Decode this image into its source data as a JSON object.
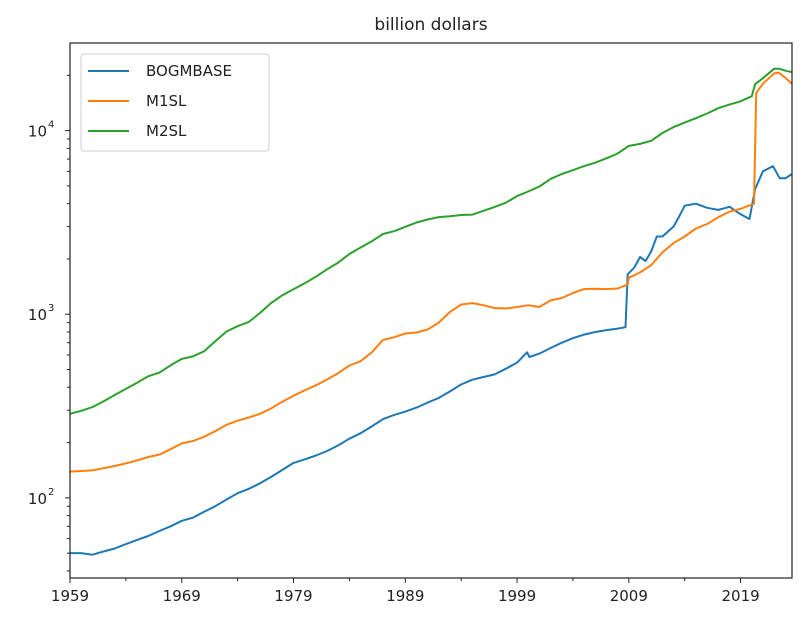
{
  "chart_data": {
    "type": "line",
    "title": "billion dollars",
    "xlabel": "",
    "ylabel": "",
    "yscale": "log",
    "xlim": [
      1959,
      2023.6
    ],
    "ylim": [
      36.6,
      30000
    ],
    "xticks": [
      1959,
      1969,
      1979,
      1989,
      1999,
      2009,
      2019
    ],
    "xtick_labels": [
      "1959",
      "1969",
      "1979",
      "1989",
      "1999",
      "2009",
      "2019"
    ],
    "yticks": [
      100,
      1000,
      10000
    ],
    "ytick_labels": [
      {
        "base": "10",
        "exp": "2"
      },
      {
        "base": "10",
        "exp": "3"
      },
      {
        "base": "10",
        "exp": "4"
      }
    ],
    "grid": false,
    "legend_position": "top-left",
    "series": [
      {
        "name": "BOGMBASE",
        "color": "#1f77b4",
        "x": [
          1959,
          1960,
          1961,
          1962,
          1963,
          1964,
          1965,
          1966,
          1967,
          1968,
          1969,
          1970,
          1971,
          1972,
          1973,
          1974,
          1975,
          1976,
          1977,
          1978,
          1979,
          1980,
          1981,
          1982,
          1983,
          1984,
          1985,
          1986,
          1987,
          1988,
          1989,
          1990,
          1991,
          1992,
          1993,
          1994,
          1995,
          1996,
          1997,
          1998,
          1999,
          1999.9,
          2000.1,
          2001,
          2002,
          2003,
          2004,
          2005,
          2006,
          2007,
          2008,
          2008.7,
          2008.9,
          2009.5,
          2010,
          2010.5,
          2011,
          2011.5,
          2012,
          2013,
          2013.5,
          2014,
          2015,
          2016,
          2017,
          2017.7,
          2018,
          2019,
          2019.8,
          2020.3,
          2021,
          2021.9,
          2022.5,
          2023,
          2023.6
        ],
        "y": [
          50,
          50,
          49,
          51,
          53,
          56,
          59,
          62,
          66,
          70,
          75,
          78,
          84,
          90,
          98,
          106,
          112,
          120,
          130,
          142,
          155,
          162,
          170,
          180,
          193,
          210,
          225,
          245,
          268,
          283,
          295,
          310,
          330,
          350,
          380,
          415,
          440,
          455,
          470,
          505,
          545,
          620,
          585,
          610,
          655,
          700,
          740,
          775,
          800,
          820,
          835,
          850,
          1650,
          1800,
          2050,
          1950,
          2200,
          2650,
          2650,
          3000,
          3400,
          3900,
          4000,
          3800,
          3700,
          3800,
          3850,
          3500,
          3300,
          4800,
          6000,
          6400,
          5500,
          5500,
          5800
        ]
      },
      {
        "name": "M1SL",
        "color": "#ff7f0e",
        "x": [
          1959,
          1960,
          1961,
          1962,
          1963,
          1964,
          1965,
          1966,
          1967,
          1968,
          1969,
          1970,
          1971,
          1972,
          1973,
          1974,
          1975,
          1976,
          1977,
          1978,
          1979,
          1980,
          1981,
          1982,
          1983,
          1984,
          1985,
          1986,
          1987,
          1988,
          1989,
          1990,
          1991,
          1992,
          1993,
          1994,
          1995,
          1996,
          1997,
          1998,
          1999,
          2000,
          2001,
          2002,
          2003,
          2004,
          2005,
          2006,
          2007,
          2008,
          2008.9,
          2009,
          2010,
          2011,
          2012,
          2013,
          2014,
          2015,
          2016,
          2017,
          2018,
          2019,
          2020.2,
          2020.4,
          2021,
          2022,
          2022.4,
          2023,
          2023.6
        ],
        "y": [
          139,
          140,
          141,
          145,
          149,
          154,
          160,
          167,
          172,
          184,
          198,
          204,
          215,
          231,
          250,
          263,
          274,
          287,
          307,
          334,
          360,
          385,
          410,
          441,
          478,
          526,
          555,
          620,
          724,
          750,
          785,
          795,
          826,
          900,
          1030,
          1130,
          1150,
          1120,
          1080,
          1075,
          1095,
          1120,
          1095,
          1190,
          1225,
          1305,
          1370,
          1375,
          1370,
          1380,
          1450,
          1580,
          1690,
          1850,
          2170,
          2440,
          2650,
          2930,
          3100,
          3370,
          3620,
          3750,
          4000,
          16000,
          18000,
          20500,
          20700,
          19400,
          18000
        ]
      },
      {
        "name": "M2SL",
        "color": "#2ca02c",
        "x": [
          1959,
          1960,
          1961,
          1962,
          1963,
          1964,
          1965,
          1966,
          1967,
          1968,
          1969,
          1970,
          1971,
          1972,
          1973,
          1974,
          1975,
          1976,
          1977,
          1978,
          1979,
          1980,
          1981,
          1982,
          1983,
          1984,
          1985,
          1986,
          1987,
          1988,
          1989,
          1990,
          1991,
          1992,
          1993,
          1994,
          1995,
          1996,
          1997,
          1998,
          1999,
          2000,
          2001,
          2002,
          2003,
          2004,
          2005,
          2006,
          2007,
          2008,
          2009,
          2010,
          2011,
          2012,
          2013,
          2014,
          2015,
          2016,
          2017,
          2018,
          2019,
          2020,
          2020.3,
          2021,
          2022,
          2022.5,
          2023,
          2023.6
        ],
        "y": [
          287,
          298,
          312,
          335,
          363,
          392,
          424,
          459,
          481,
          527,
          571,
          589,
          628,
          713,
          805,
          861,
          908,
          1016,
          1152,
          1270,
          1367,
          1474,
          1600,
          1756,
          1910,
          2127,
          2310,
          2496,
          2735,
          2833,
          2993,
          3160,
          3280,
          3380,
          3420,
          3470,
          3490,
          3660,
          3840,
          4050,
          4400,
          4660,
          4960,
          5460,
          5800,
          6090,
          6410,
          6690,
          7070,
          7500,
          8250,
          8460,
          8800,
          9700,
          10450,
          11050,
          11680,
          12400,
          13250,
          13850,
          14450,
          15400,
          17900,
          19300,
          21700,
          21700,
          21200,
          20800
        ]
      }
    ]
  }
}
